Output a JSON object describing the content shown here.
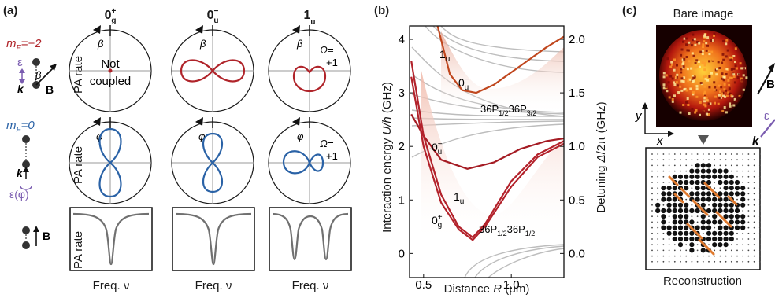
{
  "panel_labels": {
    "a": "(a)",
    "b": "(b)",
    "c": "(c)"
  },
  "panel_a": {
    "columns": [
      "0g+",
      "0u−",
      "1u"
    ],
    "col_title_parts": [
      {
        "base": "0",
        "sup": "+",
        "sub": "g"
      },
      {
        "base": "0",
        "sup": "−",
        "sub": "u"
      },
      {
        "base": "1",
        "sup": "",
        "sub": "u"
      }
    ],
    "row_ylabel": "PA rate",
    "row1_state": {
      "m": "m",
      "sub": "F",
      "eq": "=−2",
      "color": "#b0242a"
    },
    "row2_state": {
      "m": "m",
      "sub": "F",
      "eq": "=0",
      "color": "#2a62a6"
    },
    "symbols": {
      "epsilon": "ε",
      "beta": "β",
      "k": "k",
      "B": "B",
      "eps_phi": "ε(φ)",
      "phi": "φ",
      "omega_label": "Ω=",
      "omega_value": "+1"
    },
    "not_coupled": [
      "Not",
      "coupled"
    ],
    "freq_label": "Freq. ν",
    "colors": {
      "red": "#b0242a",
      "blue": "#2a62a6",
      "gray": "#707070"
    }
  },
  "panel_b": {
    "ylabel_left": "Interaction energy U/h (GHz)",
    "ylabel_right": "Detuning Δ/2π (GHz)",
    "xlabel": "Distance R (μm)",
    "curve_labels": {
      "one_u_top": "1u",
      "zero_u_top": "0u−",
      "zero_u_mid": "0u−",
      "one_u_low": "1u",
      "zero_g": "0g+",
      "asym_upper": "36P1/236P3/2",
      "asym_lower": "36P1/236P1/2"
    },
    "chart_data": {
      "type": "line",
      "xlim": [
        0.42,
        1.3
      ],
      "ylim": [
        -0.45,
        4.25
      ],
      "xticks": [
        0.5,
        1.0
      ],
      "xtick_labels": [
        "0.5",
        "1.0"
      ],
      "yticks_left": [
        0,
        1,
        2,
        3,
        4
      ],
      "yticks_right": [
        0.0,
        0.5,
        1.0,
        1.5,
        2.0
      ],
      "series": [
        {
          "label": "0u− (upper)",
          "x": [
            0.58,
            0.65,
            0.72,
            0.8,
            0.9,
            1.05,
            1.2,
            1.3
          ],
          "y": [
            4.3,
            3.35,
            3.05,
            3.0,
            3.15,
            3.5,
            3.85,
            4.05
          ]
        },
        {
          "label": "0u− (middle)",
          "x": [
            0.43,
            0.5,
            0.6,
            0.75,
            0.9,
            1.05,
            1.2,
            1.3
          ],
          "y": [
            2.6,
            2.2,
            1.75,
            1.58,
            1.7,
            1.95,
            2.1,
            2.15
          ]
        },
        {
          "label": "1u (lower)",
          "x": [
            0.43,
            0.5,
            0.6,
            0.7,
            0.78,
            0.85,
            1.0,
            1.15,
            1.3
          ],
          "y": [
            3.6,
            2.2,
            1.1,
            0.5,
            0.3,
            0.55,
            1.35,
            1.85,
            2.1
          ]
        },
        {
          "label": "0g+ (lower)",
          "x": [
            0.43,
            0.5,
            0.6,
            0.7,
            0.78,
            0.85,
            1.0,
            1.15,
            1.3
          ],
          "y": [
            3.3,
            2.0,
            0.95,
            0.45,
            0.25,
            0.5,
            1.25,
            1.8,
            2.05
          ]
        }
      ],
      "asymptotes_ghz": [
        2.35,
        0.0
      ]
    }
  },
  "panel_c": {
    "top_title": "Bare image",
    "bottom_title": "Reconstruction",
    "axis_x": "x",
    "axis_y": "y",
    "B": "B",
    "k": "k",
    "epsilon": "ε",
    "colors": {
      "atom": "#111111",
      "highlight": "#e07a2e",
      "heat_bg": "#1a0000"
    }
  }
}
